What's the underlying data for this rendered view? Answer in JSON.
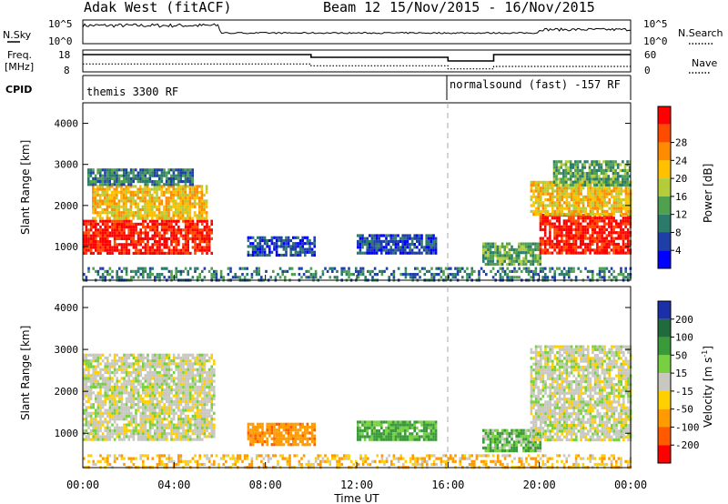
{
  "header": {
    "radar": "Adak West (fitACF)",
    "beam": "Beam 12",
    "dates": "15/Nov/2015 - 16/Nov/2015"
  },
  "strips": {
    "nsky_label": "N.Sky",
    "nsky_ticks": [
      "10^5",
      "10^0"
    ],
    "nsearch_label": "N.Search",
    "nsearch_ticks": [
      "10^5",
      "10^0"
    ],
    "freq_label_1": "Freq.",
    "freq_label_2": "[MHz]",
    "freq_ticks": [
      "18",
      "8"
    ],
    "nave_label": "Nave",
    "nave_ticks": [
      "60",
      "0"
    ],
    "cpid_label": "CPID",
    "cpid_segments": [
      {
        "start_h": 0,
        "end_h": 16,
        "label": "themis 3300 RF"
      },
      {
        "start_h": 16,
        "end_h": 24,
        "label": "normalsound (fast) -157 RF"
      }
    ],
    "freq_steps": [
      {
        "start_h": 0,
        "end_h": 10,
        "value": 16.5
      },
      {
        "start_h": 10,
        "end_h": 16,
        "value": 15
      },
      {
        "start_h": 16,
        "end_h": 18,
        "value": 13
      },
      {
        "start_h": 18,
        "end_h": 24,
        "value": 16.5
      }
    ],
    "nave_steps": [
      {
        "start_h": 0,
        "end_h": 10,
        "value": 20
      },
      {
        "start_h": 10,
        "end_h": 16,
        "value": 14
      },
      {
        "start_h": 16,
        "end_h": 18,
        "value": 4
      },
      {
        "start_h": 18,
        "end_h": 24,
        "value": 12
      }
    ]
  },
  "chart_data": [
    {
      "type": "heatmap",
      "panel": "power",
      "ylabel": "Slant Range [km]",
      "xlabel": "Time UT",
      "x_ticks": [
        "00:00",
        "04:00",
        "08:00",
        "12:00",
        "16:00",
        "20:00",
        "00:00"
      ],
      "y_ticks": [
        1000,
        2000,
        3000,
        4000
      ],
      "xlim_hours": [
        0,
        24
      ],
      "ylim_km": [
        180,
        4500
      ],
      "colorbar": {
        "label": "Power [dB]",
        "ticks": [
          4,
          8,
          12,
          16,
          20,
          24,
          28
        ],
        "colors": [
          "#0000ff",
          "#1f3fa8",
          "#2c7a6a",
          "#4fa04f",
          "#b5cc3a",
          "#ffc000",
          "#ff8c00",
          "#ff4b00",
          "#ff0000"
        ]
      },
      "regions": [
        {
          "t0": 0.0,
          "t1": 5.6,
          "r0": 820,
          "r1": 1650,
          "level": 8
        },
        {
          "t0": 0.4,
          "t1": 5.4,
          "r0": 1700,
          "r1": 2500,
          "level": 5
        },
        {
          "t0": 0.2,
          "t1": 4.8,
          "r0": 2500,
          "r1": 2900,
          "level": 2
        },
        {
          "t0": 7.2,
          "t1": 10.2,
          "r0": 760,
          "r1": 1250,
          "level": 1
        },
        {
          "t0": 12.0,
          "t1": 15.5,
          "r0": 850,
          "r1": 1300,
          "level": 1
        },
        {
          "t0": 17.5,
          "t1": 20.0,
          "r0": 600,
          "r1": 1100,
          "level": 3
        },
        {
          "t0": 20.0,
          "t1": 24.0,
          "r0": 830,
          "r1": 1800,
          "level": 8
        },
        {
          "t0": 19.6,
          "t1": 24.0,
          "r0": 1800,
          "r1": 2600,
          "level": 5
        },
        {
          "t0": 20.6,
          "t1": 24.0,
          "r0": 2500,
          "r1": 3100,
          "level": 3
        },
        {
          "t0": 0.0,
          "t1": 24.0,
          "r0": 180,
          "r1": 500,
          "level": 2
        }
      ]
    },
    {
      "type": "heatmap",
      "panel": "velocity",
      "ylabel": "Slant Range [km]",
      "xlabel": "Time UT",
      "x_ticks": [
        "00:00",
        "04:00",
        "08:00",
        "12:00",
        "16:00",
        "20:00",
        "00:00"
      ],
      "y_ticks": [
        1000,
        2000,
        3000,
        4000
      ],
      "xlim_hours": [
        0,
        24
      ],
      "ylim_km": [
        180,
        4500
      ],
      "colorbar": {
        "label": "Velocity [m s^-1]",
        "ticks": [
          200,
          100,
          50,
          15,
          -15,
          -50,
          -100,
          -200
        ],
        "colors": [
          "#1a2fa8",
          "#1f6b3c",
          "#3a9a3a",
          "#77d042",
          "#c8c8c0",
          "#ffd000",
          "#ff9a00",
          "#ff5a00",
          "#ff0000"
        ]
      },
      "regions": [
        {
          "t0": 0.0,
          "t1": 5.8,
          "r0": 820,
          "r1": 2900,
          "velocity": 0
        },
        {
          "t0": 7.2,
          "t1": 10.2,
          "r0": 760,
          "r1": 1250,
          "velocity": -60
        },
        {
          "t0": 12.0,
          "t1": 15.5,
          "r0": 850,
          "r1": 1300,
          "velocity": 40
        },
        {
          "t0": 17.5,
          "t1": 20.0,
          "r0": 600,
          "r1": 1100,
          "velocity": 30
        },
        {
          "t0": 19.6,
          "t1": 24.0,
          "r0": 830,
          "r1": 3100,
          "velocity": 0
        },
        {
          "t0": 0.0,
          "t1": 24.0,
          "r0": 180,
          "r1": 500,
          "velocity": -30
        }
      ]
    }
  ]
}
